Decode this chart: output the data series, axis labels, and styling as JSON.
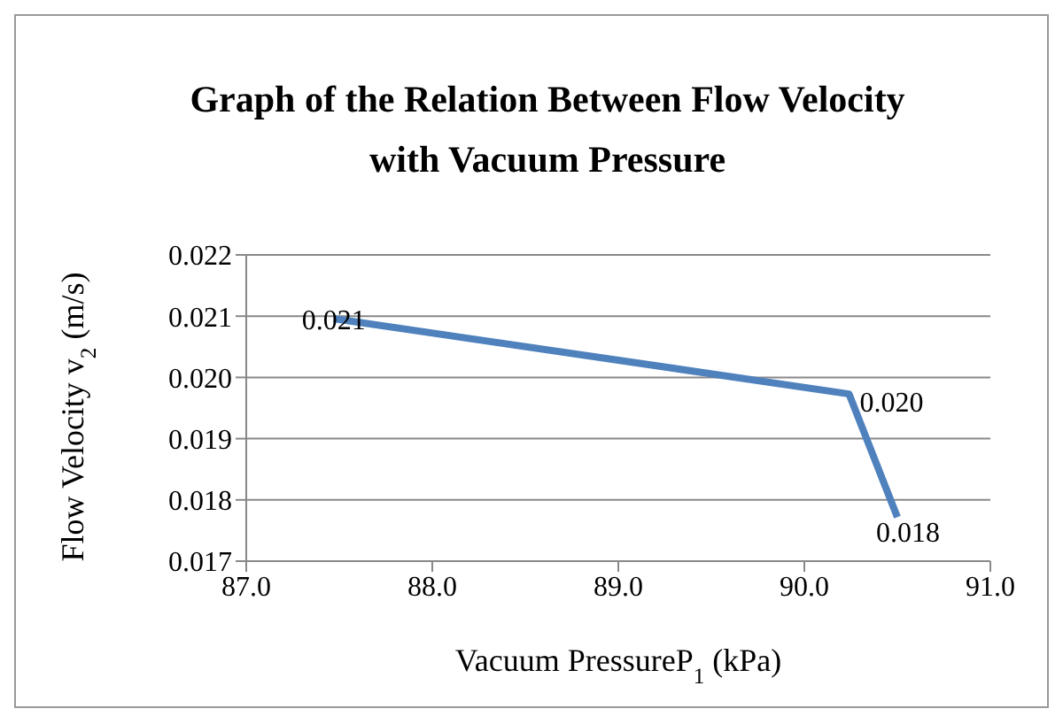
{
  "chart_data": {
    "type": "line",
    "title": "Graph of the Relation Between Flow Velocity with Vacuum Pressure",
    "xlabel": "Vacuum PressureP$_{1}$ (kPa)",
    "ylabel": "Flow Velocity v$_{2}$ (m/s)",
    "x": [
      87.47,
      90.24,
      90.5
    ],
    "series": [
      {
        "color": "#4f81bd",
        "values": [
          0.02096,
          0.01973,
          0.01772
        ],
        "value_labels": [
          "0.021",
          "0.020",
          "0.018"
        ]
      }
    ],
    "xlim": [
      87,
      91
    ],
    "xticks": [
      {
        "value": 87,
        "label": "87.0"
      },
      {
        "value": 88,
        "label": "88.0"
      },
      {
        "value": 89,
        "label": "89.0"
      },
      {
        "value": 90,
        "label": "90.0"
      },
      {
        "value": 91,
        "label": "91.0"
      }
    ],
    "ylim": [
      0.017,
      0.022
    ],
    "yticks": [
      {
        "value": 0.017,
        "label": "0.017"
      },
      {
        "value": 0.018,
        "label": "0.018"
      },
      {
        "value": 0.019,
        "label": "0.019"
      },
      {
        "value": 0.02,
        "label": "0.020"
      },
      {
        "value": 0.021,
        "label": "0.021"
      },
      {
        "value": 0.022,
        "label": "0.022"
      }
    ],
    "grid": "y",
    "marker": "none",
    "line_style": "solid"
  }
}
